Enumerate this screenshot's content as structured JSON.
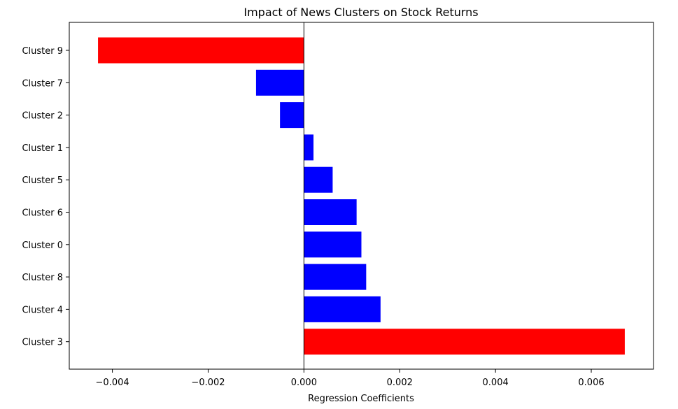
{
  "chart_data": {
    "type": "bar",
    "orientation": "horizontal",
    "title": "Impact of News Clusters on Stock Returns",
    "xlabel": "Regression Coefficients",
    "ylabel": "",
    "xlim": [
      -0.0049,
      0.0073
    ],
    "xticks": [
      -0.004,
      -0.002,
      0.0,
      0.002,
      0.004,
      0.006
    ],
    "xtick_labels": [
      "−0.004",
      "−0.002",
      "0.000",
      "0.002",
      "0.004",
      "0.006"
    ],
    "categories": [
      "Cluster 9",
      "Cluster 7",
      "Cluster 2",
      "Cluster 1",
      "Cluster 5",
      "Cluster 6",
      "Cluster 0",
      "Cluster 8",
      "Cluster 4",
      "Cluster 3"
    ],
    "values": [
      -0.0043,
      -0.001,
      -0.0005,
      0.0002,
      0.0006,
      0.0011,
      0.0012,
      0.0013,
      0.0016,
      0.0067
    ],
    "bar_colors": [
      "#ff0000",
      "#0000ff",
      "#0000ff",
      "#0000ff",
      "#0000ff",
      "#0000ff",
      "#0000ff",
      "#0000ff",
      "#0000ff",
      "#ff0000"
    ],
    "grid": false,
    "zero_line": true
  }
}
